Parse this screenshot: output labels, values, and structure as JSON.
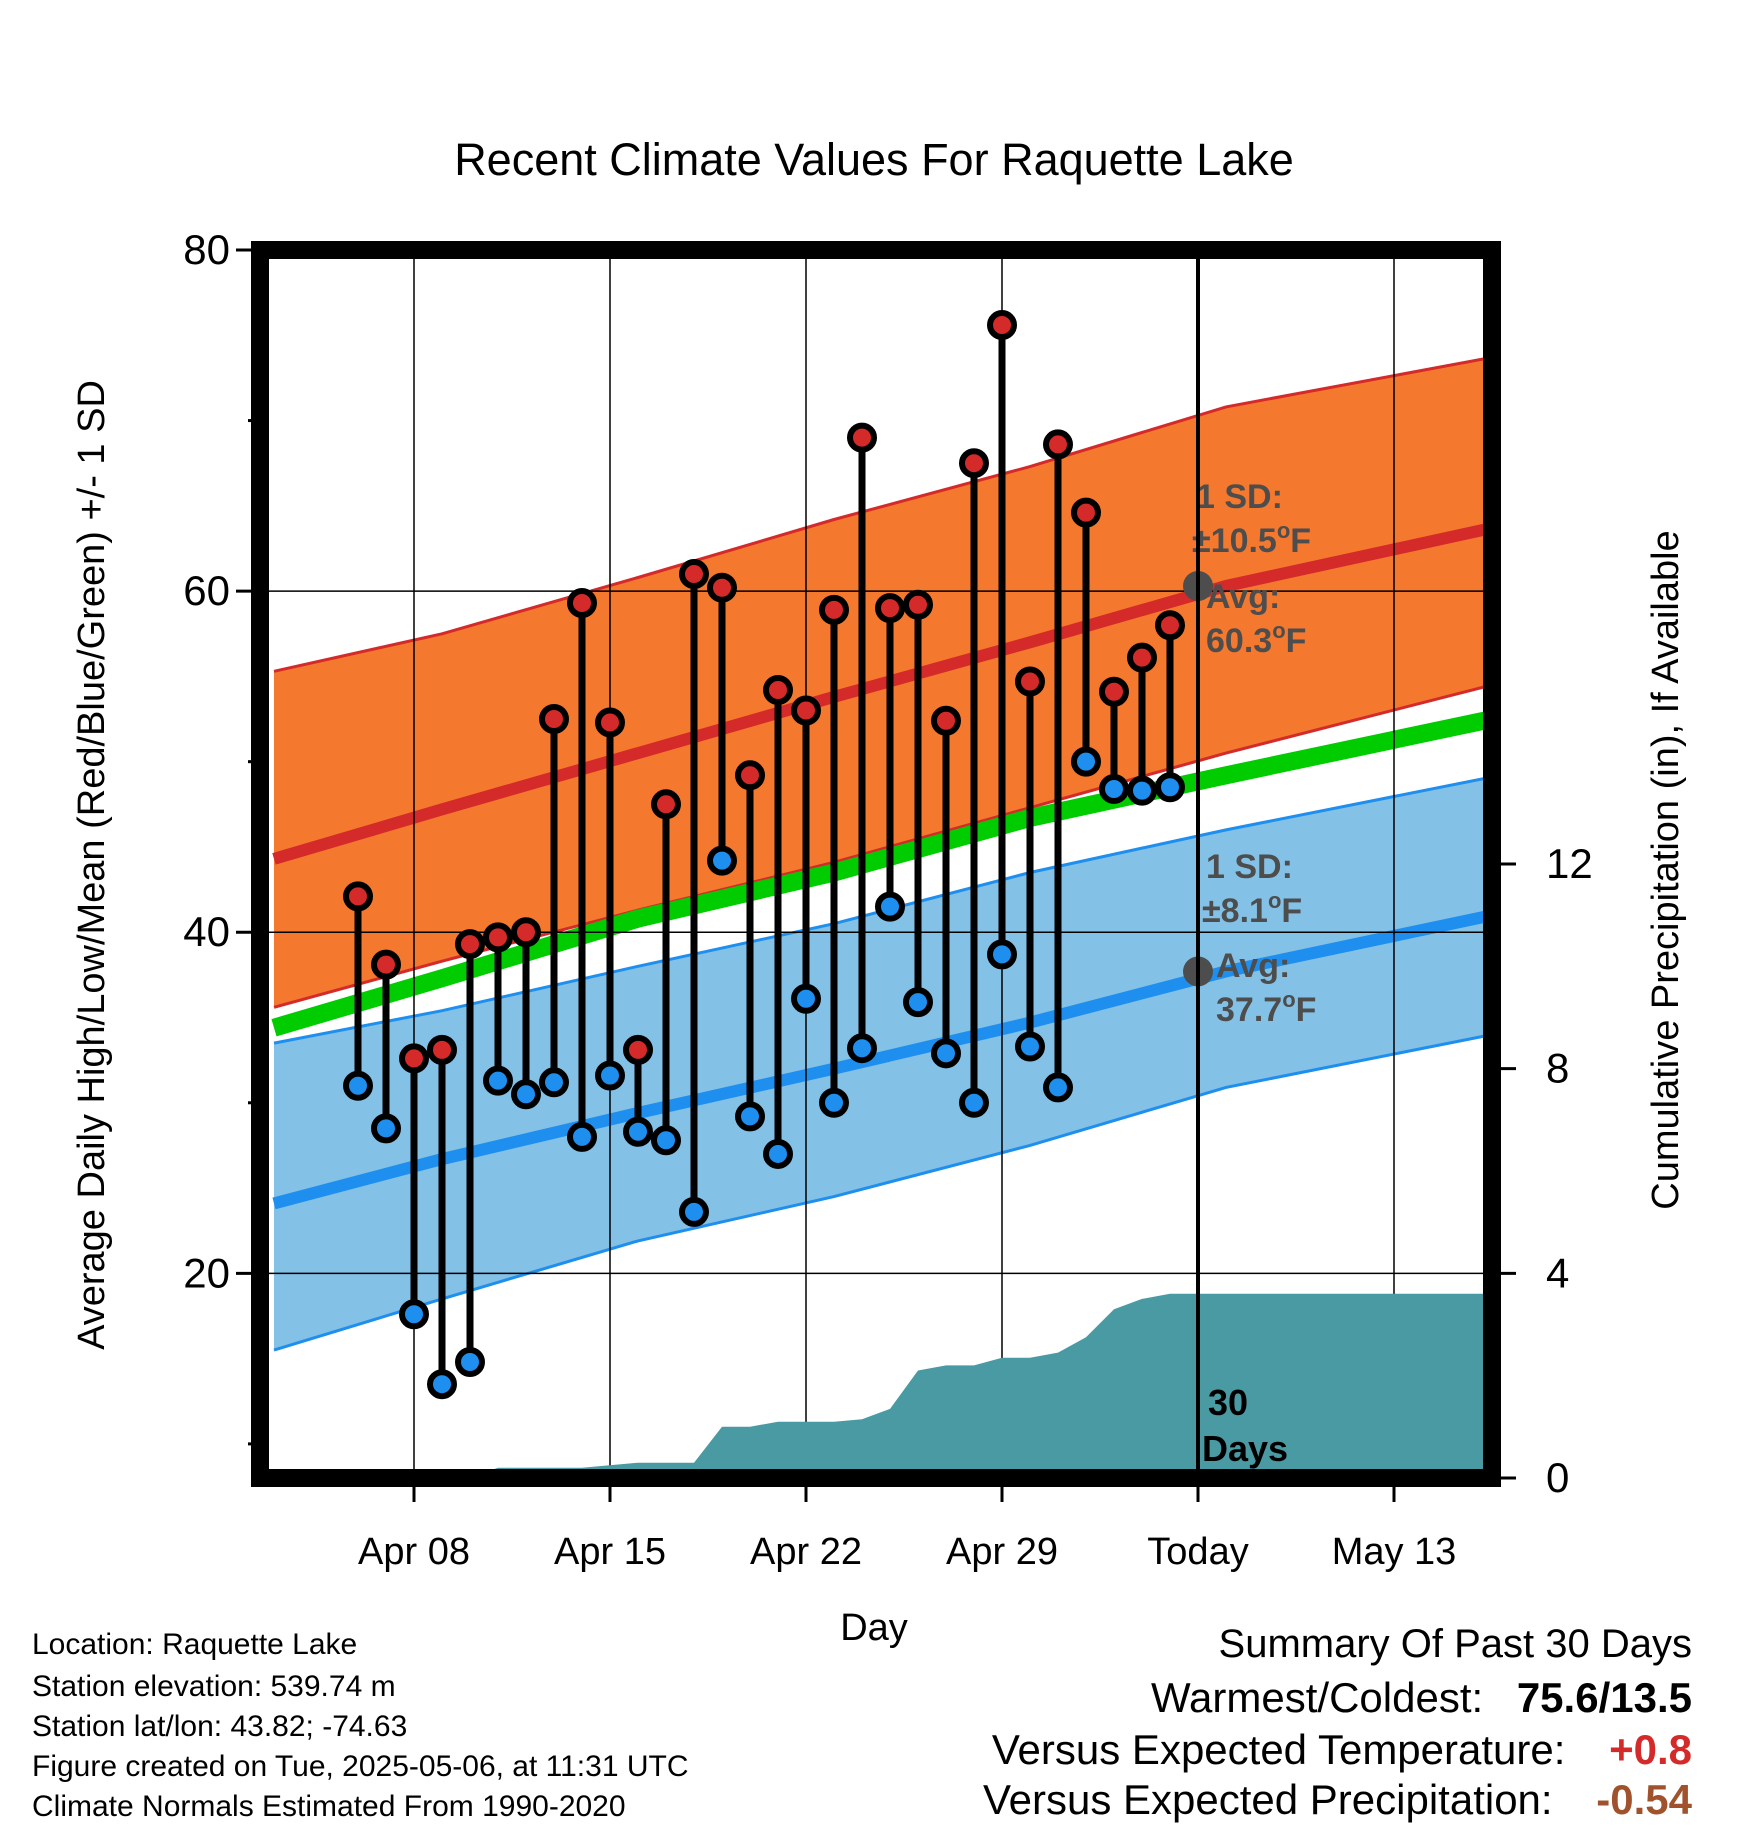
{
  "chart_data": {
    "type": "line",
    "title": "Recent Climate Values For Raquette Lake",
    "xlabel": "Day",
    "ylabel": "Average Daily High/Low/Mean (Red/Blue/Green) +/- 1 SD",
    "ylabel_right": "Cumulative Precipitation (in), If Available",
    "xlim_day": [
      2.5,
      46.5
    ],
    "ylim": [
      8,
      80
    ],
    "y2lim": [
      0,
      24
    ],
    "x_ticks": [
      {
        "day": 8,
        "label": "Apr 08"
      },
      {
        "day": 15,
        "label": "Apr 15"
      },
      {
        "day": 22,
        "label": "Apr 22"
      },
      {
        "day": 29,
        "label": "Apr 29"
      },
      {
        "day": 36,
        "label": "Today"
      },
      {
        "day": 43,
        "label": "May 13"
      }
    ],
    "y_ticks": [
      "20",
      "40",
      "60",
      "80"
    ],
    "y_tick_values": [
      20,
      40,
      60,
      80
    ],
    "y2_ticks": [
      "0",
      "4",
      "8",
      "12"
    ],
    "y2_tick_values": [
      0,
      4,
      8,
      12
    ],
    "grid": true,
    "today_day": 36,
    "today_label": "30 Days",
    "observed": {
      "days": [
        6,
        7,
        8,
        9,
        10,
        11,
        12,
        13,
        14,
        15,
        16,
        17,
        18,
        19,
        20,
        21,
        22,
        23,
        24,
        25,
        26,
        27,
        28,
        29,
        30,
        31,
        32,
        33,
        34,
        35
      ],
      "high": [
        42.1,
        38.1,
        32.6,
        33.1,
        39.3,
        39.7,
        40.0,
        52.5,
        59.3,
        52.3,
        33.1,
        47.5,
        61.0,
        60.2,
        49.2,
        54.2,
        53.0,
        58.9,
        69.0,
        59.0,
        59.2,
        52.4,
        67.5,
        75.6,
        54.7,
        68.6,
        64.6,
        54.1,
        56.1,
        58.0
      ],
      "low": [
        31.0,
        28.5,
        17.6,
        13.5,
        14.8,
        31.3,
        30.5,
        31.2,
        28.0,
        31.6,
        28.3,
        27.8,
        23.6,
        44.2,
        29.2,
        27.0,
        36.1,
        30.0,
        33.2,
        41.5,
        35.9,
        32.9,
        30.0,
        38.7,
        33.3,
        30.9,
        50.0,
        48.4,
        48.3,
        48.5
      ]
    },
    "normals": {
      "days": [
        3,
        9,
        16,
        23,
        30,
        37,
        46.5
      ],
      "high_mean": [
        44.3,
        47.2,
        50.5,
        53.8,
        57.0,
        60.3,
        63.7
      ],
      "high_sd_upper": [
        55.3,
        57.5,
        60.8,
        64.2,
        67.3,
        70.8,
        73.7
      ],
      "high_sd_lower": [
        35.6,
        38.3,
        41.3,
        44.1,
        47.3,
        50.5,
        54.5
      ],
      "mean": [
        34.4,
        37.3,
        40.8,
        43.5,
        46.7,
        49.2,
        52.5
      ],
      "low_mean": [
        24.1,
        26.7,
        29.4,
        32.0,
        34.7,
        37.7,
        41.0
      ],
      "low_sd_upper": [
        33.5,
        35.4,
        38.0,
        40.5,
        43.5,
        46.0,
        49.1
      ],
      "low_sd_lower": [
        15.5,
        18.5,
        21.9,
        24.5,
        27.5,
        30.9,
        34.0
      ]
    },
    "precip_cumulative": {
      "days": [
        3,
        9,
        10,
        11,
        14,
        16,
        17,
        18,
        19,
        20,
        21,
        22,
        23,
        24,
        25,
        26,
        27,
        28,
        29,
        30,
        31,
        32,
        33,
        34,
        35,
        46.5
      ],
      "inches": [
        0,
        0,
        0,
        0.2,
        0.2,
        0.3,
        0.3,
        0.3,
        1.0,
        1.0,
        1.1,
        1.1,
        1.1,
        1.15,
        1.35,
        2.1,
        2.2,
        2.2,
        2.35,
        2.35,
        2.45,
        2.75,
        3.3,
        3.5,
        3.6,
        3.6
      ]
    },
    "annotations": {
      "high_sd": {
        "line1": "1 SD:",
        "line2": "±10.5",
        "deg": "o",
        "unit": "F",
        "avg_label": "Avg:",
        "avg_value": "60.3",
        "avg": 60.3
      },
      "low_sd": {
        "line1": "1 SD:",
        "line2": "±8.1",
        "deg": "o",
        "unit": "F",
        "avg_label": "Avg:",
        "avg_value": "37.7",
        "avg": 37.7
      }
    },
    "colors": {
      "high_band": "#f4782e",
      "high_line": "#d42a2a",
      "mean_line": "#00cc00",
      "low_band": "#84c1e6",
      "low_line": "#1e8fef",
      "precip": "#4a9aa3",
      "high_dot": "#d42a2a",
      "low_dot": "#1e8fef",
      "annotation": "#4d4d4d"
    }
  },
  "info": {
    "location": "Location: Raquette Lake",
    "elevation": "Station elevation: 539.74 m",
    "latlon": "Station lat/lon: 43.82; -74.63",
    "created": "Figure created on Tue, 2025-05-06, at 11:31 UTC",
    "normals": "Climate Normals Estimated From 1990-2020"
  },
  "summary": {
    "title": "Summary Of Past 30 Days",
    "warmest_label": "Warmest/Coldest:",
    "warmest_value": "75.6/13.5",
    "temp_label": "Versus Expected Temperature:",
    "temp_value": "+0.8",
    "temp_color": "#d42a2a",
    "precip_label": "Versus Expected Precipitation:",
    "precip_value": "-0.54",
    "precip_color": "#a0522d"
  }
}
